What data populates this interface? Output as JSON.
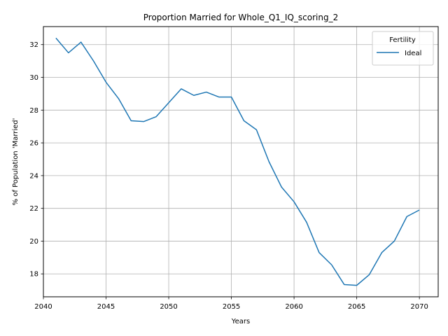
{
  "chart_data": {
    "type": "line",
    "title": "Proportion Married for Whole_Q1_IQ_scoring_2",
    "xlabel": "Years",
    "ylabel": "% of Population 'Married'",
    "xlim": [
      2040,
      2071.5
    ],
    "ylim": [
      16.6,
      33.1
    ],
    "x_ticks": [
      2040,
      2045,
      2050,
      2055,
      2060,
      2065,
      2070
    ],
    "y_ticks": [
      18,
      20,
      22,
      24,
      26,
      28,
      30,
      32
    ],
    "grid": true,
    "legend": {
      "title": "Fertility",
      "placement": "top-right"
    },
    "series": [
      {
        "name": "Ideal",
        "color": "#1f77b4",
        "x": [
          2041,
          2042,
          2043,
          2044,
          2045,
          2046,
          2047,
          2048,
          2049,
          2050,
          2051,
          2052,
          2053,
          2054,
          2055,
          2056,
          2057,
          2058,
          2059,
          2060,
          2061,
          2062,
          2063,
          2064,
          2065,
          2066,
          2067,
          2068,
          2069,
          2070
        ],
        "values": [
          32.4,
          31.5,
          32.15,
          31.0,
          29.7,
          28.7,
          27.35,
          27.3,
          27.6,
          28.45,
          29.3,
          28.9,
          29.1,
          28.8,
          28.8,
          27.35,
          26.8,
          24.85,
          23.3,
          22.4,
          21.15,
          19.3,
          18.55,
          17.35,
          17.3,
          17.95,
          19.3,
          20.0,
          21.5,
          21.9
        ]
      }
    ]
  }
}
